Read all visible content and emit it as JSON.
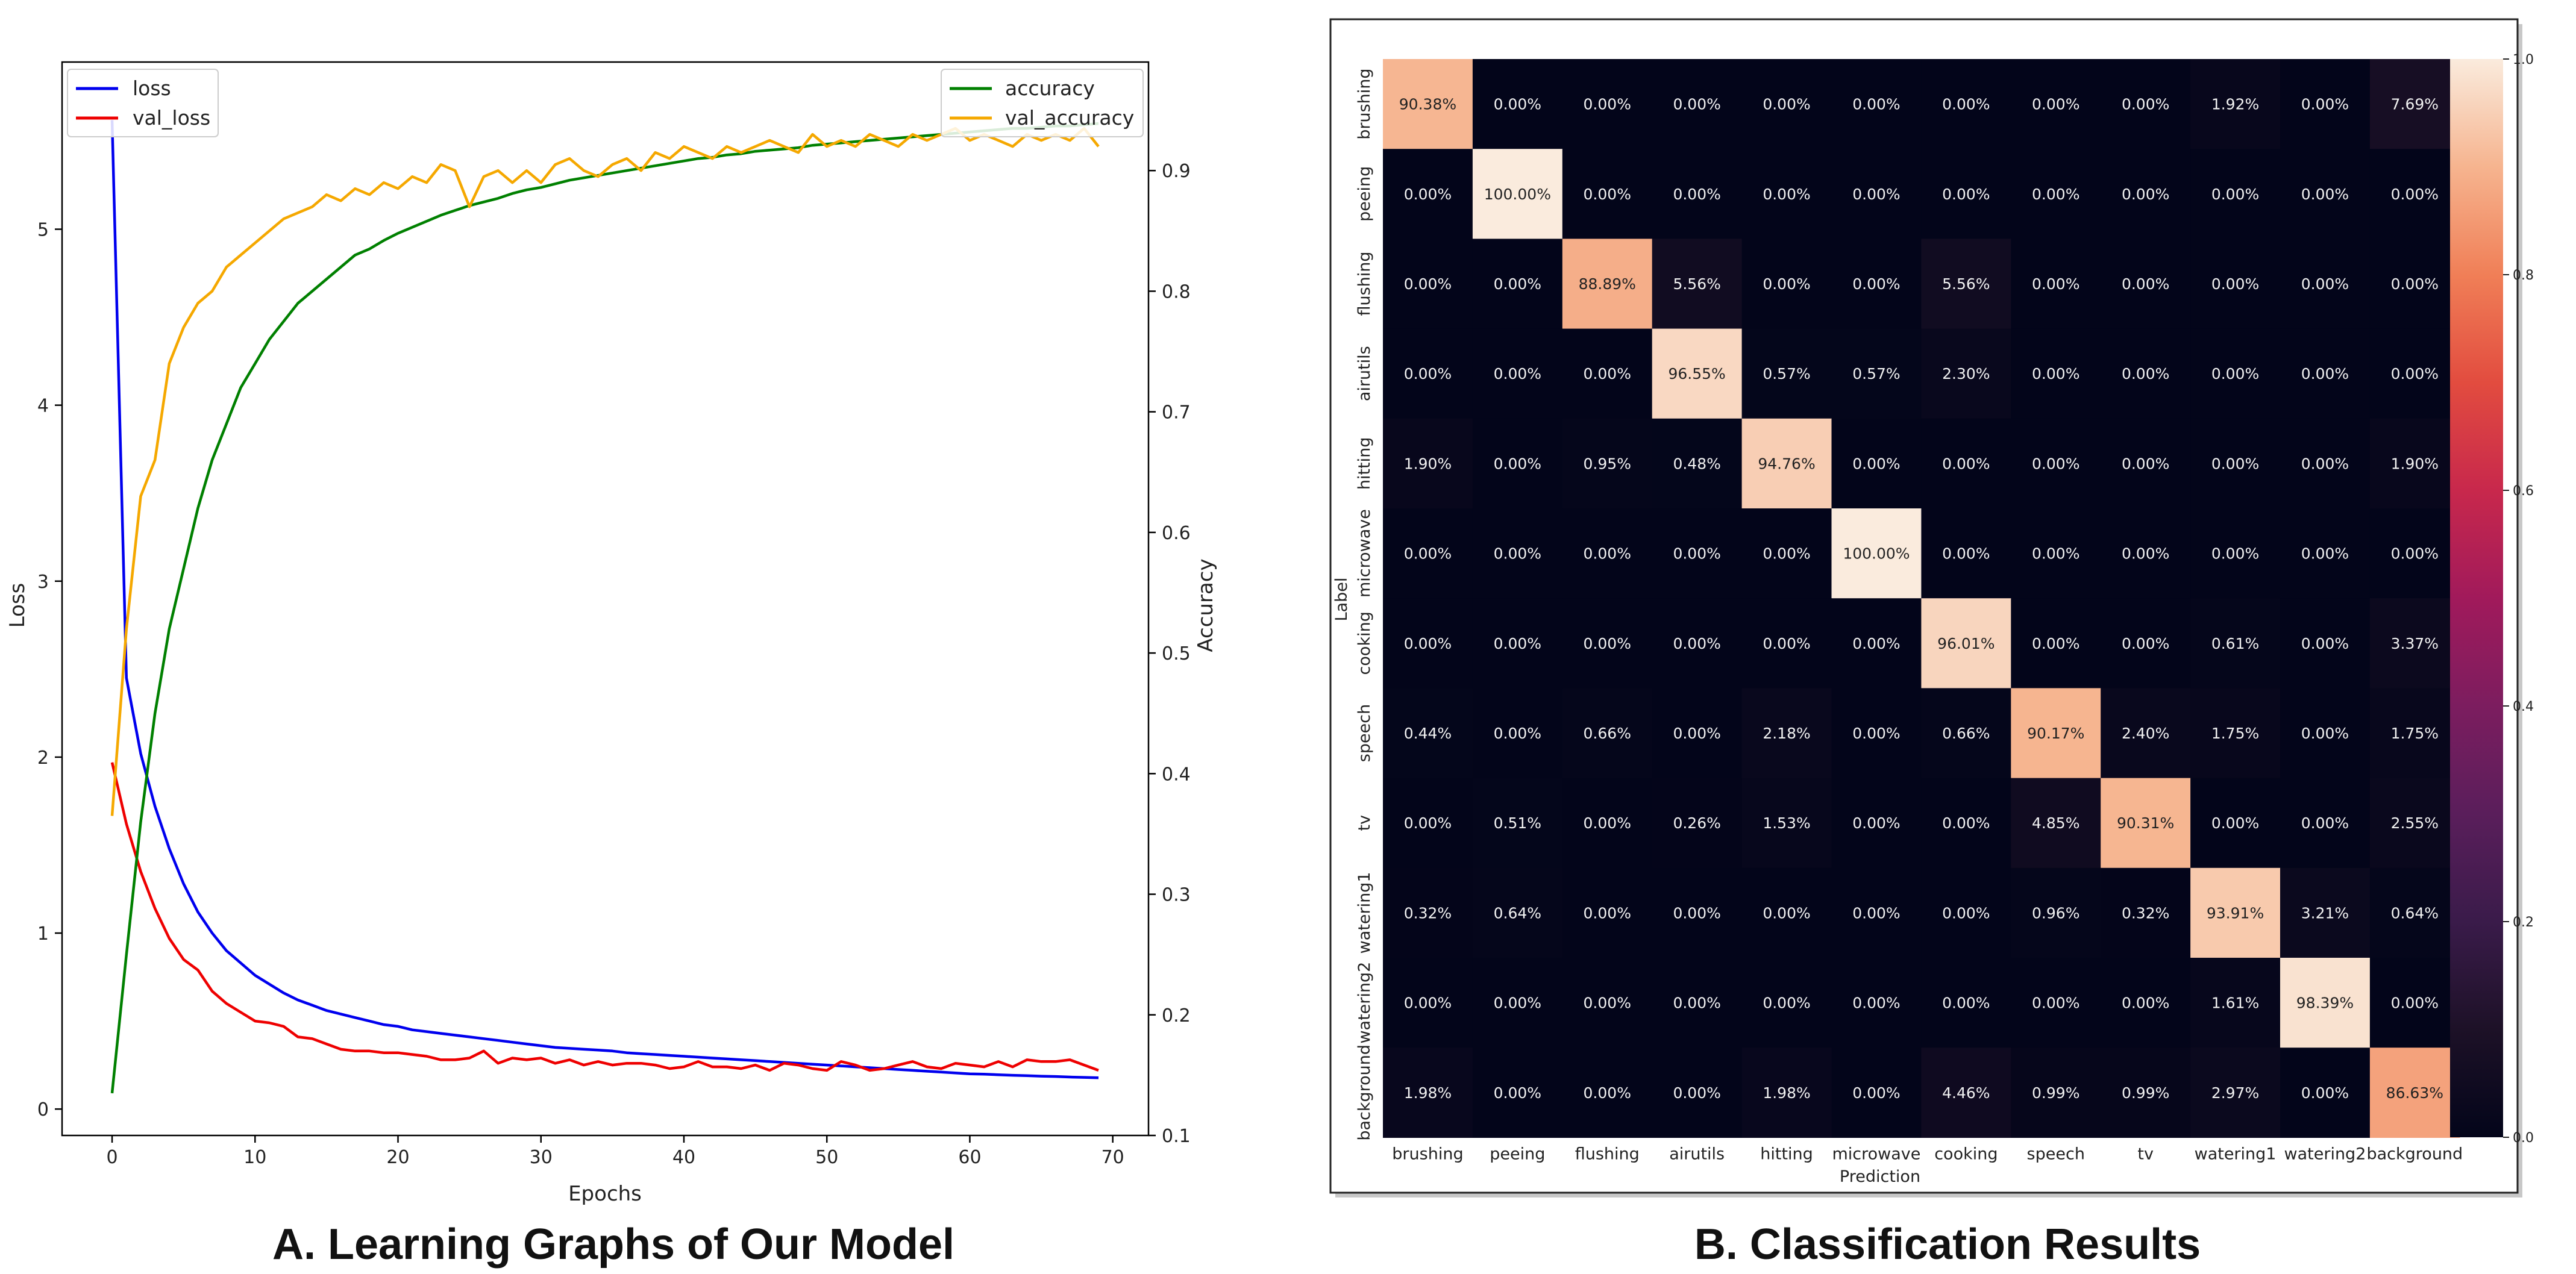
{
  "chart_data": [
    {
      "type": "line",
      "caption": "A. Learning Graphs of Our Model",
      "xlabel": "Epochs",
      "ylabel_left": "Loss",
      "ylabel_right": "Accuracy",
      "xlim": [
        -3.5,
        72.5
      ],
      "ylim_left": [
        -0.15,
        5.95
      ],
      "ylim_right": [
        0.1,
        0.99
      ],
      "xticks": [
        0,
        10,
        20,
        30,
        40,
        50,
        60,
        70
      ],
      "yticks_left": [
        0,
        1,
        2,
        3,
        4,
        5
      ],
      "yticks_right": [
        0.1,
        0.2,
        0.3,
        0.4,
        0.5,
        0.6,
        0.7,
        0.8,
        0.9
      ],
      "legend_left": "upper left",
      "legend_right": "upper right",
      "x": [
        0,
        1,
        2,
        3,
        4,
        5,
        6,
        7,
        8,
        9,
        10,
        11,
        12,
        13,
        14,
        15,
        16,
        17,
        18,
        19,
        20,
        21,
        22,
        23,
        24,
        25,
        26,
        27,
        28,
        29,
        30,
        31,
        32,
        33,
        34,
        35,
        36,
        37,
        38,
        39,
        40,
        41,
        42,
        43,
        44,
        45,
        46,
        47,
        48,
        49,
        50,
        51,
        52,
        53,
        54,
        55,
        56,
        57,
        58,
        59,
        60,
        61,
        62,
        63,
        64,
        65,
        66,
        67,
        68,
        69
      ],
      "series": [
        {
          "name": "loss",
          "axis": "left",
          "color": "#0000ee",
          "values": [
            5.62,
            2.45,
            2.02,
            1.72,
            1.48,
            1.28,
            1.12,
            1.0,
            0.9,
            0.83,
            0.76,
            0.71,
            0.66,
            0.62,
            0.59,
            0.56,
            0.54,
            0.52,
            0.5,
            0.48,
            0.47,
            0.45,
            0.44,
            0.43,
            0.42,
            0.41,
            0.4,
            0.39,
            0.38,
            0.37,
            0.36,
            0.35,
            0.345,
            0.34,
            0.335,
            0.33,
            0.32,
            0.315,
            0.31,
            0.305,
            0.3,
            0.295,
            0.29,
            0.285,
            0.28,
            0.275,
            0.27,
            0.265,
            0.26,
            0.255,
            0.25,
            0.245,
            0.24,
            0.235,
            0.23,
            0.225,
            0.22,
            0.215,
            0.21,
            0.205,
            0.2,
            0.198,
            0.195,
            0.192,
            0.19,
            0.187,
            0.185,
            0.182,
            0.18,
            0.178
          ]
        },
        {
          "name": "val_loss",
          "axis": "left",
          "color": "#ee0000",
          "values": [
            1.97,
            1.62,
            1.35,
            1.14,
            0.97,
            0.85,
            0.79,
            0.67,
            0.6,
            0.55,
            0.5,
            0.49,
            0.47,
            0.41,
            0.4,
            0.37,
            0.34,
            0.33,
            0.33,
            0.32,
            0.32,
            0.31,
            0.3,
            0.28,
            0.28,
            0.29,
            0.33,
            0.26,
            0.29,
            0.28,
            0.29,
            0.26,
            0.28,
            0.25,
            0.27,
            0.25,
            0.26,
            0.26,
            0.25,
            0.23,
            0.24,
            0.27,
            0.24,
            0.24,
            0.23,
            0.25,
            0.22,
            0.26,
            0.25,
            0.23,
            0.22,
            0.27,
            0.25,
            0.22,
            0.23,
            0.25,
            0.27,
            0.24,
            0.23,
            0.26,
            0.25,
            0.24,
            0.27,
            0.24,
            0.28,
            0.27,
            0.27,
            0.28,
            0.25,
            0.22
          ]
        },
        {
          "name": "accuracy",
          "axis": "right",
          "color": "#008000",
          "values": [
            0.135,
            0.25,
            0.36,
            0.45,
            0.52,
            0.57,
            0.62,
            0.66,
            0.69,
            0.72,
            0.74,
            0.76,
            0.775,
            0.79,
            0.8,
            0.81,
            0.82,
            0.83,
            0.835,
            0.842,
            0.848,
            0.853,
            0.858,
            0.863,
            0.867,
            0.871,
            0.874,
            0.877,
            0.881,
            0.884,
            0.886,
            0.889,
            0.892,
            0.894,
            0.896,
            0.898,
            0.9,
            0.902,
            0.904,
            0.906,
            0.908,
            0.91,
            0.911,
            0.913,
            0.914,
            0.916,
            0.917,
            0.918,
            0.919,
            0.921,
            0.922,
            0.923,
            0.924,
            0.925,
            0.926,
            0.927,
            0.928,
            0.929,
            0.93,
            0.931,
            0.932,
            0.933,
            0.934,
            0.935,
            0.935,
            0.936,
            0.937,
            0.937,
            0.938,
            0.939
          ]
        },
        {
          "name": "val_accuracy",
          "axis": "right",
          "color": "#f5a800",
          "values": [
            0.365,
            0.52,
            0.63,
            0.66,
            0.74,
            0.77,
            0.79,
            0.8,
            0.82,
            0.83,
            0.84,
            0.85,
            0.86,
            0.865,
            0.87,
            0.88,
            0.875,
            0.885,
            0.88,
            0.89,
            0.885,
            0.895,
            0.89,
            0.905,
            0.9,
            0.87,
            0.895,
            0.9,
            0.89,
            0.9,
            0.89,
            0.905,
            0.91,
            0.9,
            0.895,
            0.905,
            0.91,
            0.9,
            0.915,
            0.91,
            0.92,
            0.915,
            0.91,
            0.92,
            0.915,
            0.92,
            0.925,
            0.92,
            0.915,
            0.93,
            0.92,
            0.925,
            0.92,
            0.93,
            0.925,
            0.92,
            0.93,
            0.925,
            0.93,
            0.935,
            0.925,
            0.93,
            0.925,
            0.92,
            0.93,
            0.925,
            0.93,
            0.925,
            0.935,
            0.92
          ]
        }
      ]
    },
    {
      "type": "heatmap",
      "caption": "B. Classification Results",
      "xlabel": "Prediction",
      "ylabel": "Label",
      "labels": [
        "brushing",
        "peeing",
        "flushing",
        "airutils",
        "hitting",
        "microwave",
        "cooking",
        "speech",
        "tv",
        "watering1",
        "watering2",
        "background"
      ],
      "colorbar_ticks": [
        0.0,
        0.2,
        0.4,
        0.6,
        0.8,
        1.0
      ],
      "colorbar_tick_labels": [
        "0.0",
        "0.2",
        "0.4",
        "0.6",
        "0.8",
        "1.0"
      ],
      "matrix": [
        [
          90.38,
          0.0,
          0.0,
          0.0,
          0.0,
          0.0,
          0.0,
          0.0,
          0.0,
          1.92,
          0.0,
          7.69
        ],
        [
          0.0,
          100.0,
          0.0,
          0.0,
          0.0,
          0.0,
          0.0,
          0.0,
          0.0,
          0.0,
          0.0,
          0.0
        ],
        [
          0.0,
          0.0,
          88.89,
          5.56,
          0.0,
          0.0,
          5.56,
          0.0,
          0.0,
          0.0,
          0.0,
          0.0
        ],
        [
          0.0,
          0.0,
          0.0,
          96.55,
          0.57,
          0.57,
          2.3,
          0.0,
          0.0,
          0.0,
          0.0,
          0.0
        ],
        [
          1.9,
          0.0,
          0.95,
          0.48,
          94.76,
          0.0,
          0.0,
          0.0,
          0.0,
          0.0,
          0.0,
          1.9
        ],
        [
          0.0,
          0.0,
          0.0,
          0.0,
          0.0,
          100.0,
          0.0,
          0.0,
          0.0,
          0.0,
          0.0,
          0.0
        ],
        [
          0.0,
          0.0,
          0.0,
          0.0,
          0.0,
          0.0,
          96.01,
          0.0,
          0.0,
          0.61,
          0.0,
          3.37
        ],
        [
          0.44,
          0.0,
          0.66,
          0.0,
          2.18,
          0.0,
          0.66,
          90.17,
          2.4,
          1.75,
          0.0,
          1.75
        ],
        [
          0.0,
          0.51,
          0.0,
          0.26,
          1.53,
          0.0,
          0.0,
          4.85,
          90.31,
          0.0,
          0.0,
          2.55
        ],
        [
          0.32,
          0.64,
          0.0,
          0.0,
          0.0,
          0.0,
          0.0,
          0.96,
          0.32,
          93.91,
          3.21,
          0.64
        ],
        [
          0.0,
          0.0,
          0.0,
          0.0,
          0.0,
          0.0,
          0.0,
          0.0,
          0.0,
          1.61,
          98.39,
          0.0
        ],
        [
          1.98,
          0.0,
          0.0,
          0.0,
          1.98,
          0.0,
          4.46,
          0.99,
          0.99,
          2.97,
          0.0,
          86.63
        ]
      ]
    }
  ]
}
